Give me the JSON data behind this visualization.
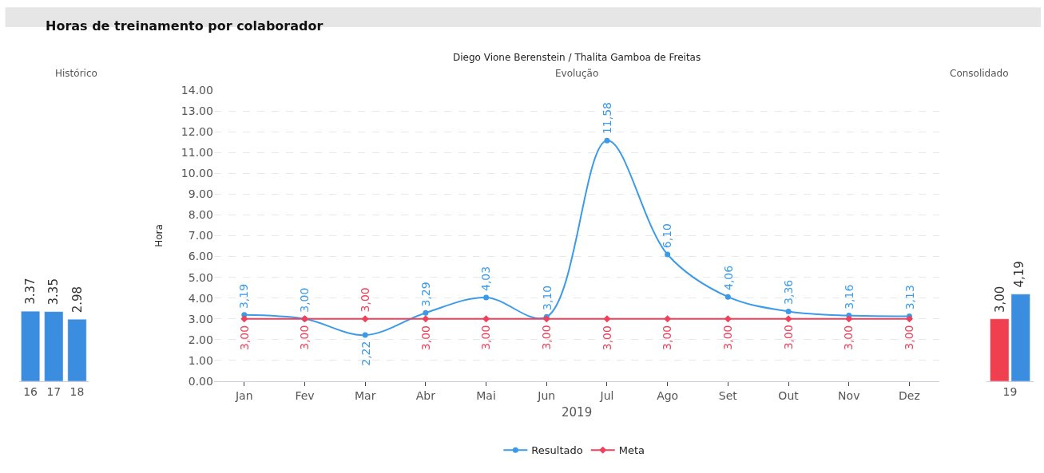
{
  "chart_data": [
    {
      "type": "bar",
      "title": "Histórico",
      "annotations": [
        "Horas de treinamento por colaborador"
      ],
      "categories": [
        "16",
        "17",
        "18"
      ],
      "values": [
        3.37,
        3.35,
        2.98
      ],
      "color": "#3b8de0",
      "value_labels": [
        "3.37",
        "3.35",
        "2.98"
      ],
      "legend": false
    },
    {
      "type": "line",
      "title": "Diego Vione Berenstein / Thalita Gamboa de Freitas",
      "subtitle": "Evolução",
      "xlabel": "2019",
      "ylabel": "Hora",
      "categories": [
        "Jan",
        "Fev",
        "Mar",
        "Abr",
        "Mai",
        "Jun",
        "Jul",
        "Ago",
        "Set",
        "Out",
        "Nov",
        "Dez"
      ],
      "series": [
        {
          "name": "Resultado",
          "color": "#3b9be8",
          "marker": "circle",
          "values": [
            3.19,
            3.0,
            2.22,
            3.29,
            4.03,
            3.1,
            11.58,
            6.1,
            4.06,
            3.36,
            3.16,
            3.13
          ],
          "value_labels": [
            "3,19",
            "3,00",
            "2,22",
            "3,29",
            "4,03",
            "3,10",
            "11,58",
            "6,10",
            "4,06",
            "3,36",
            "3,16",
            "3,13"
          ]
        },
        {
          "name": "Meta",
          "color": "#f0405a",
          "marker": "diamond",
          "values": [
            3.0,
            3.0,
            3.0,
            3.0,
            3.0,
            3.0,
            3.0,
            3.0,
            3.0,
            3.0,
            3.0,
            3.0
          ],
          "value_labels": [
            "3,00",
            "3,00",
            "3,00",
            "3,00",
            "3,00",
            "3,00",
            "3,00",
            "3,00",
            "3,00",
            "3,00",
            "3,00",
            "3,00"
          ]
        }
      ],
      "ylim": [
        0,
        14
      ],
      "yticks": [
        {
          "value": 0,
          "label": "0.00"
        },
        {
          "value": 1,
          "label": "1.00"
        },
        {
          "value": 2,
          "label": "2.00"
        },
        {
          "value": 3,
          "label": "3.00"
        },
        {
          "value": 4,
          "label": "4.00"
        },
        {
          "value": 5,
          "label": "5.00"
        },
        {
          "value": 6,
          "label": "6.00"
        },
        {
          "value": 7,
          "label": "7.00"
        },
        {
          "value": 8,
          "label": "8.00"
        },
        {
          "value": 9,
          "label": "9.00"
        },
        {
          "value": 10,
          "label": "10.00"
        },
        {
          "value": 11,
          "label": "11.00"
        },
        {
          "value": 12,
          "label": "12.00"
        },
        {
          "value": 13,
          "label": "13.00"
        },
        {
          "value": 14,
          "label": "14.00"
        }
      ],
      "grid": "y",
      "legend": "bottom"
    },
    {
      "type": "bar",
      "title": "Consolidado",
      "categories": [
        "19"
      ],
      "series": [
        {
          "color": "#f0404f",
          "values": [
            3.0
          ],
          "value_labels": [
            "3,00"
          ]
        },
        {
          "color": "#3b8de0",
          "values": [
            4.19
          ],
          "value_labels": [
            "4,19"
          ]
        }
      ],
      "legend": false
    }
  ]
}
